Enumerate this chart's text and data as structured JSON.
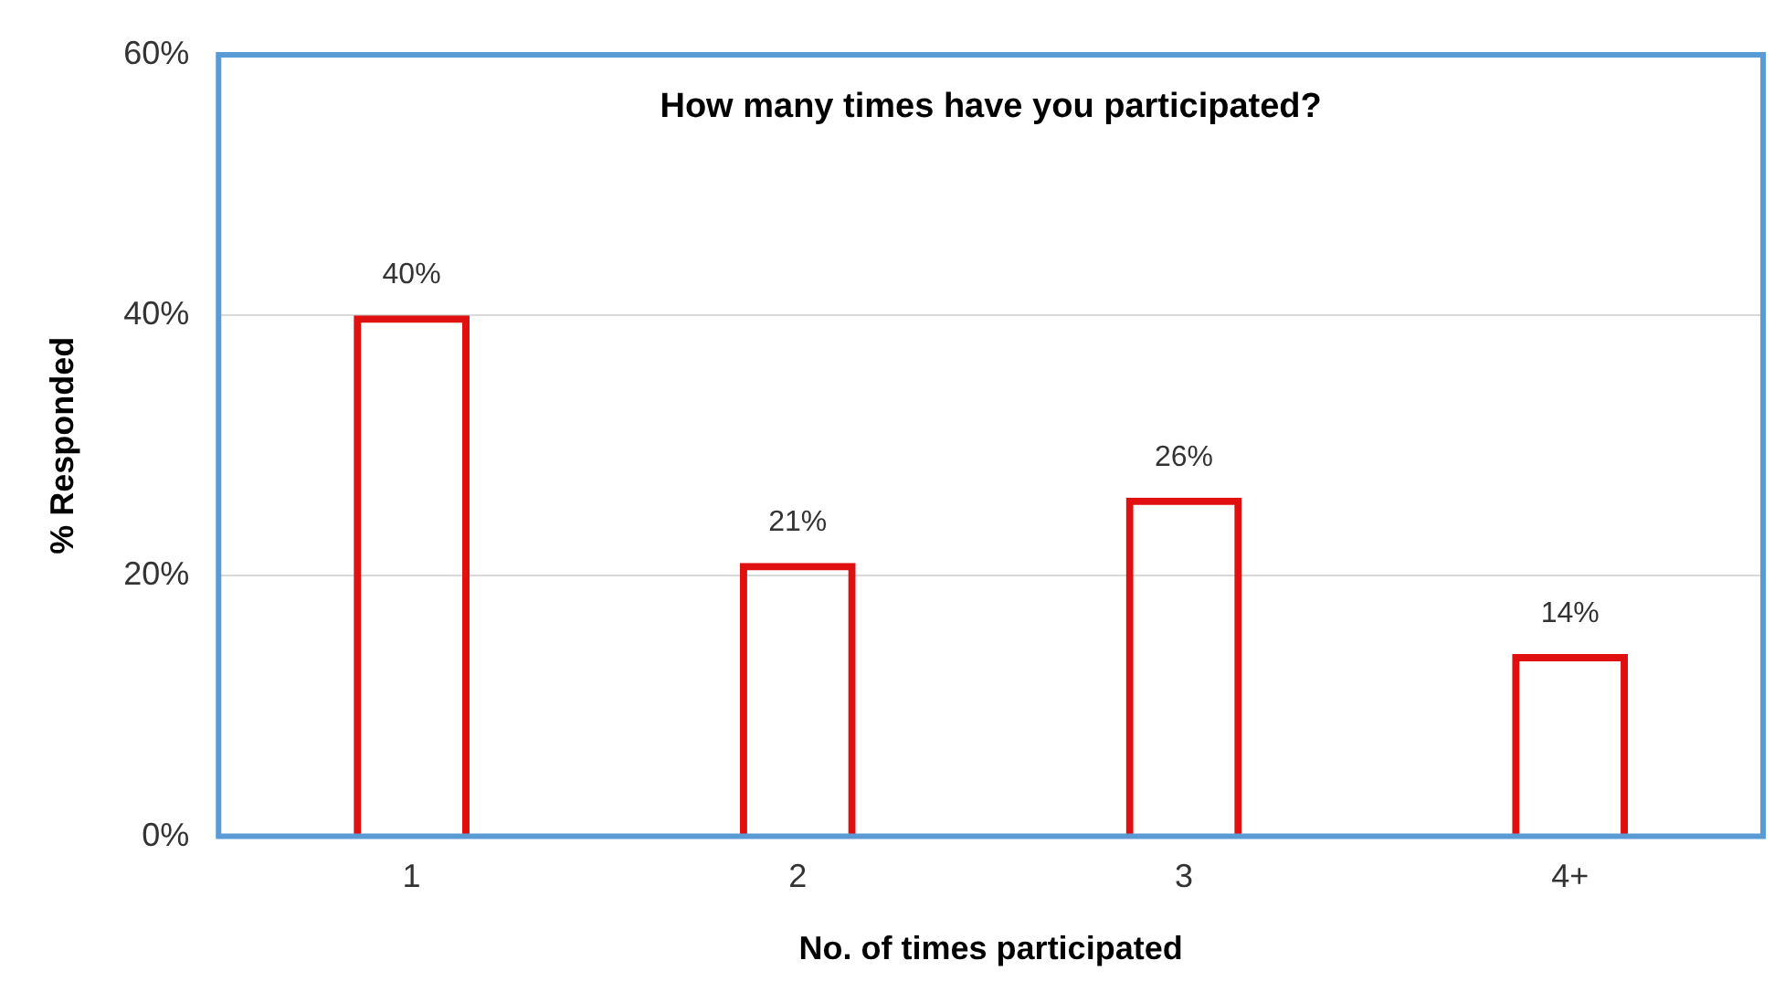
{
  "chart_data": {
    "type": "bar",
    "title": "How many times have you participated?",
    "xlabel": "No. of times participated",
    "ylabel": "% Responded",
    "categories": [
      "1",
      "2",
      "3",
      "4+"
    ],
    "series": [
      {
        "color": "#e01010",
        "values": [
          40,
          21,
          26,
          14
        ],
        "value_labels": [
          "40%",
          "21%",
          "26%",
          "14%"
        ]
      }
    ],
    "ylim": [
      0,
      60
    ],
    "yticks": [
      {
        "value": 0,
        "label": "0%"
      },
      {
        "value": 20,
        "label": "20%"
      },
      {
        "value": 40,
        "label": "40%"
      },
      {
        "value": 60,
        "label": "60%"
      }
    ],
    "grid": "y",
    "legend": false
  }
}
